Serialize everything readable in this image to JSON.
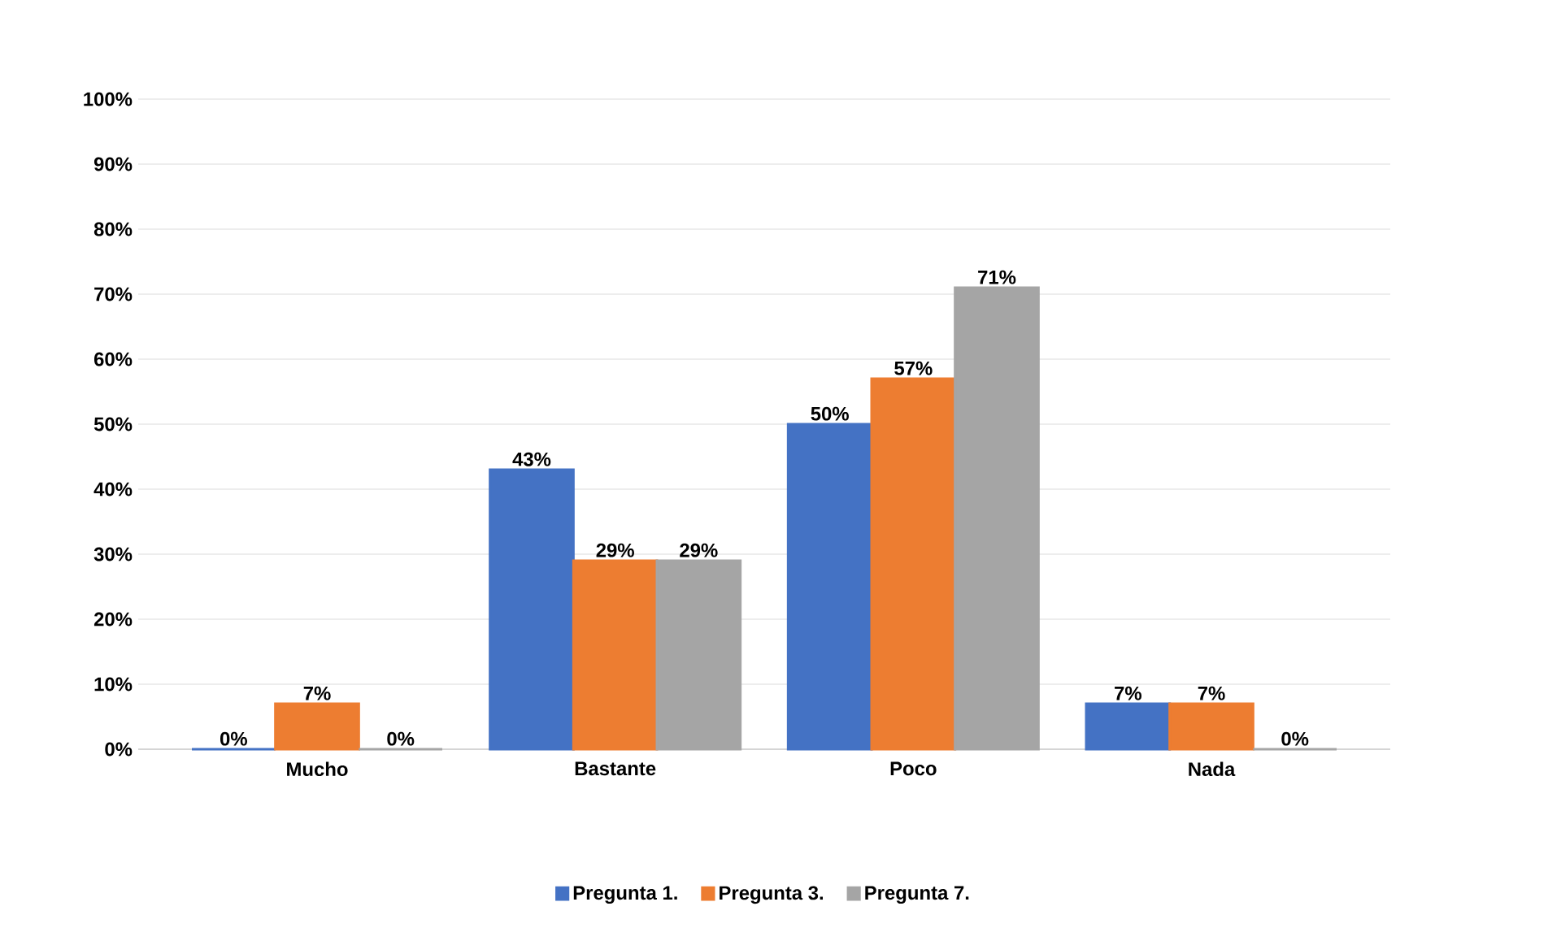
{
  "chart_data": {
    "type": "bar",
    "categories": [
      "Mucho",
      "Bastante",
      "Poco",
      "Nada"
    ],
    "series": [
      {
        "name": "Pregunta 1.",
        "color": "#4472c4",
        "values": [
          0,
          43,
          50,
          7
        ],
        "value_labels": [
          "0%",
          "43%",
          "50%",
          "7%"
        ]
      },
      {
        "name": "Pregunta 3.",
        "color": "#ed7d31",
        "values": [
          7,
          29,
          57,
          7
        ],
        "value_labels": [
          "7%",
          "29%",
          "57%",
          "7%"
        ]
      },
      {
        "name": "Pregunta 7.",
        "color": "#a5a5a5",
        "values": [
          0,
          29,
          71,
          0
        ],
        "value_labels": [
          "0%",
          "29%",
          "71%",
          "0%"
        ]
      }
    ],
    "ylim": [
      0,
      100
    ],
    "yticks": [
      {
        "value": 0,
        "label": "0%"
      },
      {
        "value": 10,
        "label": "10%"
      },
      {
        "value": 20,
        "label": "20%"
      },
      {
        "value": 30,
        "label": "30%"
      },
      {
        "value": 40,
        "label": "40%"
      },
      {
        "value": 50,
        "label": "50%"
      },
      {
        "value": 60,
        "label": "60%"
      },
      {
        "value": 70,
        "label": "70%"
      },
      {
        "value": 80,
        "label": "80%"
      },
      {
        "value": 90,
        "label": "90%"
      },
      {
        "value": 100,
        "label": "100%"
      }
    ],
    "grid": "y",
    "legend": "bottom"
  }
}
